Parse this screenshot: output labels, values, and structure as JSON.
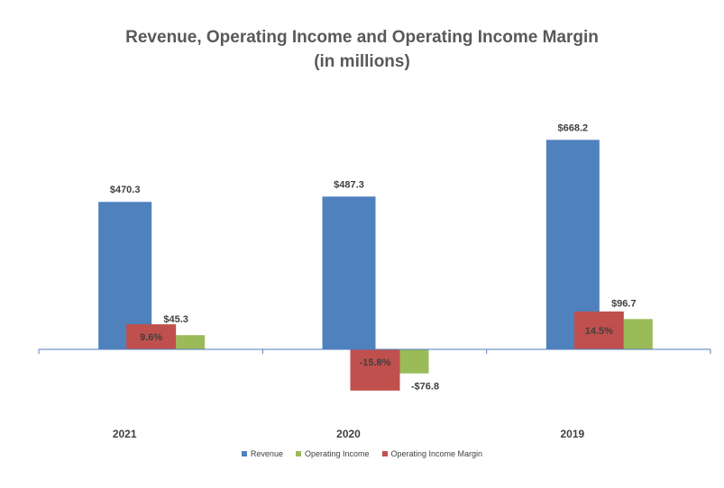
{
  "chart_data": {
    "type": "bar",
    "title_line1": "Revenue, Operating Income and Operating Income Margin",
    "title_line2": "(in millions)",
    "categories": [
      "2021",
      "2020",
      "2019"
    ],
    "series": [
      {
        "name": "Revenue",
        "color": "#4F81BD",
        "values": [
          470.3,
          487.3,
          668.2
        ],
        "labels": [
          "$470.3",
          "$487.3",
          "$668.2"
        ]
      },
      {
        "name": "Operating Income",
        "color": "#9BBB59",
        "values": [
          45.3,
          -76.8,
          96.7
        ],
        "labels": [
          "$45.3",
          "-$76.8",
          "$96.7"
        ]
      },
      {
        "name": "Operating Income Margin",
        "color": "#C0504D",
        "values": [
          9.6,
          -15.8,
          14.5
        ],
        "labels": [
          "9.6%",
          "-15.8%",
          "14.5%"
        ]
      }
    ],
    "ylim": [
      -150,
      800
    ],
    "legend_position": "bottom"
  }
}
